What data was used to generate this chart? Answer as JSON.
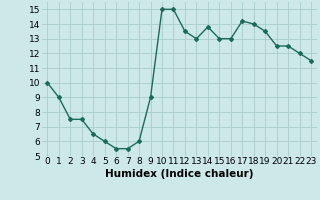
{
  "x": [
    0,
    1,
    2,
    3,
    4,
    5,
    6,
    7,
    8,
    9,
    10,
    11,
    12,
    13,
    14,
    15,
    16,
    17,
    18,
    19,
    20,
    21,
    22,
    23
  ],
  "y": [
    10,
    9,
    7.5,
    7.5,
    6.5,
    6.0,
    5.5,
    5.5,
    6.0,
    9.0,
    15.0,
    15.0,
    13.5,
    13.0,
    13.8,
    13.0,
    13.0,
    14.2,
    14.0,
    13.5,
    12.5,
    12.5,
    12.0,
    11.5
  ],
  "line_color": "#1a6b5a",
  "marker": "D",
  "marker_size": 2.0,
  "bg_color": "#cce8e8",
  "grid_color": "#aacccc",
  "xlabel": "Humidex (Indice chaleur)",
  "xlim": [
    -0.5,
    23.5
  ],
  "ylim": [
    5,
    15.5
  ],
  "yticks": [
    5,
    6,
    7,
    8,
    9,
    10,
    11,
    12,
    13,
    14,
    15
  ],
  "xticks": [
    0,
    1,
    2,
    3,
    4,
    5,
    6,
    7,
    8,
    9,
    10,
    11,
    12,
    13,
    14,
    15,
    16,
    17,
    18,
    19,
    20,
    21,
    22,
    23
  ],
  "xlabel_fontsize": 7.5,
  "tick_fontsize": 6.5,
  "line_width": 1.0
}
